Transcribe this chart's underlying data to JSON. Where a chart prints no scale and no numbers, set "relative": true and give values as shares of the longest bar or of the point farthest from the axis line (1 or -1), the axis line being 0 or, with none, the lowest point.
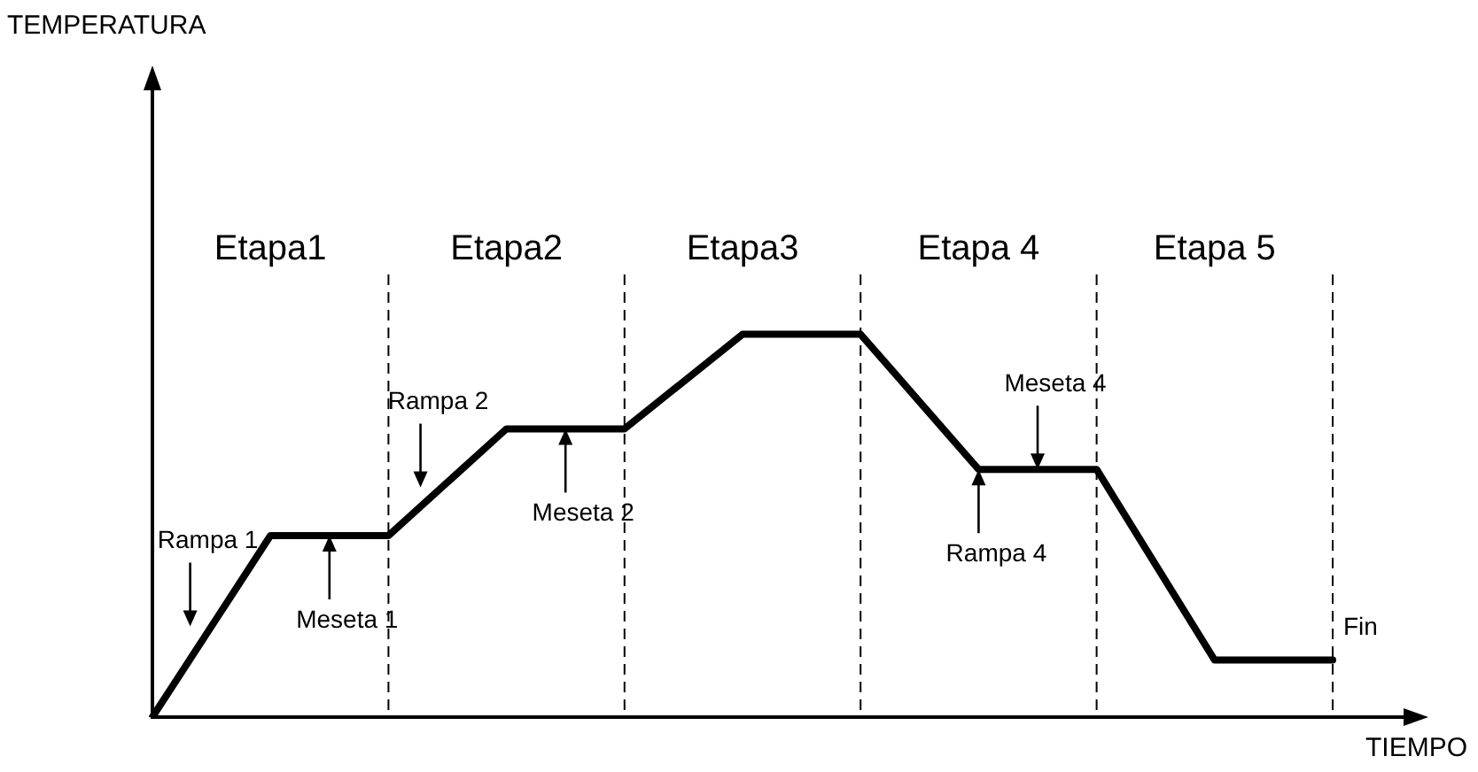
{
  "chart_data": {
    "type": "line",
    "relative": true,
    "xlabel": "TIEMPO",
    "categories": [
      null,
      null,
      null,
      null,
      null,
      null,
      null,
      null,
      null,
      null,
      null
    ],
    "values": [
      0,
      0.474,
      0.474,
      0.753,
      0.753,
      1,
      1,
      0.647,
      0.647,
      0.149,
      0.149
    ],
    "color": "#000000",
    "marker": "none",
    "line_style": "solid",
    "legend": false,
    "grid": "x",
    "annotations": [
      "TEMPERATURA",
      "Etapa1",
      "Etapa2",
      "Etapa3",
      "Etapa 4",
      "Etapa 5",
      {
        "text": "Rampa 1",
        "y": 0.237
      },
      {
        "text": "Meseta 1",
        "y": 0.474
      },
      {
        "text": "Rampa 2",
        "y": 0.6
      },
      {
        "text": "Meseta 2",
        "y": 0.753
      },
      {
        "text": "Rampa 4",
        "y": 0.647
      },
      {
        "text": "Meseta 4",
        "y": 0.647
      },
      "Fin"
    ]
  }
}
